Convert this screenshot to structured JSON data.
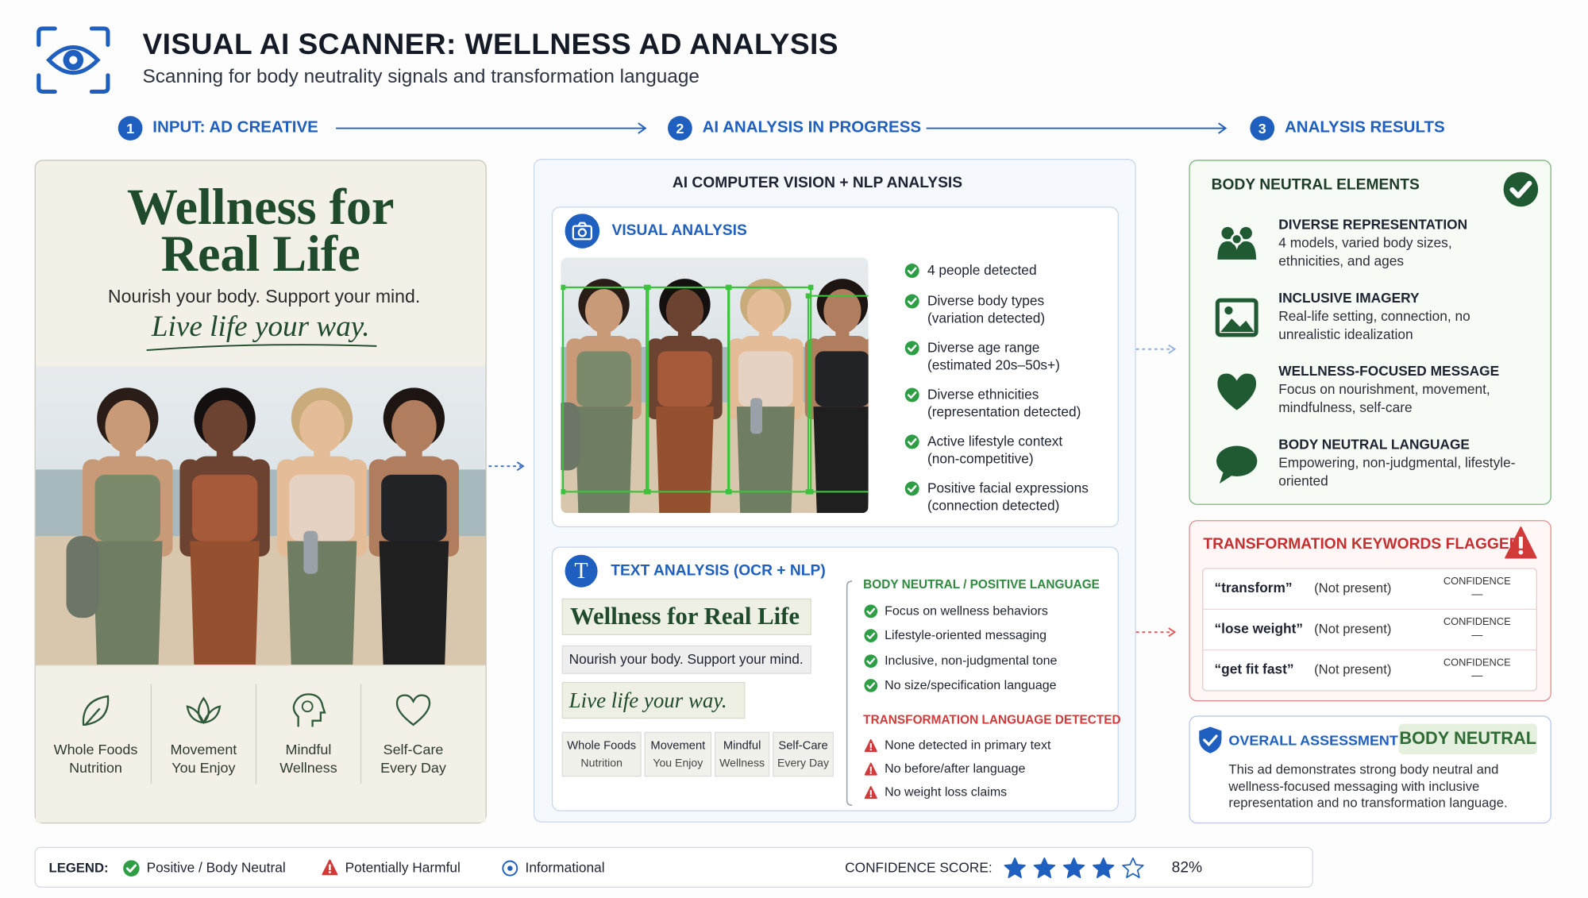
{
  "header": {
    "title": "VISUAL AI SCANNER: WELLNESS AD ANALYSIS",
    "subtitle": "Scanning for body neutrality signals and transformation language"
  },
  "steps": [
    {
      "number": "1",
      "label": "INPUT: AD CREATIVE"
    },
    {
      "number": "2",
      "label": "AI ANALYSIS IN PROGRESS"
    },
    {
      "number": "3",
      "label": "ANALYSIS RESULTS"
    }
  ],
  "ad": {
    "headline": "Wellness for Real Life",
    "tagline": "Nourish your body. Support your mind.",
    "script": "Live life your way.",
    "features": [
      [
        "Whole Foods",
        "Nutrition"
      ],
      [
        "Movement",
        "You Enjoy"
      ],
      [
        "Mindful",
        "Wellness"
      ],
      [
        "Self-Care",
        "Every Day"
      ]
    ]
  },
  "analysis": {
    "title": "AI COMPUTER VISION + NLP ANALYSIS",
    "visual": {
      "title": "VISUAL ANALYSIS",
      "items": [
        {
          "main": "4 people detected"
        },
        {
          "main": "Diverse body types",
          "sub": "(variation detected)"
        },
        {
          "main": "Diverse age range",
          "sub": "(estimated 20s–50s+)"
        },
        {
          "main": "Diverse ethnicities",
          "sub": "(representation detected)"
        },
        {
          "main": "Active lifestyle context",
          "sub": "(non-competitive)"
        },
        {
          "main": "Positive facial expressions",
          "sub": "(connection detected)"
        }
      ]
    },
    "text": {
      "title": "TEXT ANALYSIS (OCR + NLP)",
      "positive": {
        "heading": "BODY NEUTRAL / POSITIVE LANGUAGE",
        "items": [
          "Focus on wellness behaviors",
          "Lifestyle-oriented messaging",
          "Inclusive, non-judgmental tone",
          "No size/specification language"
        ]
      },
      "transformation": {
        "heading": "TRANSFORMATION LANGUAGE DETECTED",
        "items": [
          "None detected in primary text",
          "No before/after language",
          "No weight loss claims"
        ]
      }
    }
  },
  "results": {
    "body_neutral": {
      "title": "BODY NEUTRAL ELEMENTS",
      "items": [
        {
          "title": "DIVERSE REPRESENTATION",
          "desc": "4 models, varied body sizes, ethnicities, and ages"
        },
        {
          "title": "INCLUSIVE IMAGERY",
          "desc": "Real-life setting, connection, no unrealistic idealization"
        },
        {
          "title": "WELLNESS-FOCUSED MESSAGE",
          "desc": "Focus on nourishment, movement, mindfulness, self-care"
        },
        {
          "title": "BODY NEUTRAL LANGUAGE",
          "desc": "Empowering, non-judgmental, lifestyle-oriented"
        }
      ]
    },
    "keywords": {
      "title": "TRANSFORMATION KEYWORDS FLAGGED",
      "rows": [
        {
          "keyword": "“transform”",
          "status": "(Not present)",
          "confidence_label": "CONFIDENCE",
          "confidence": "—"
        },
        {
          "keyword": "“lose weight”",
          "status": "(Not present)",
          "confidence_label": "CONFIDENCE",
          "confidence": "—"
        },
        {
          "keyword": "“get fit fast”",
          "status": "(Not present)",
          "confidence_label": "CONFIDENCE",
          "confidence": "—"
        }
      ]
    },
    "assessment": {
      "title": "OVERALL ASSESSMENT",
      "verdict": "BODY NEUTRAL",
      "text": "This ad demonstrates strong body neutral and wellness-focused messaging with inclusive representation and no transformation language."
    }
  },
  "legend": {
    "label": "LEGEND:",
    "items": [
      "Positive / Body Neutral",
      "Potentially Harmful",
      "Informational"
    ],
    "score_label": "CONFIDENCE SCORE:",
    "score": "82%"
  }
}
